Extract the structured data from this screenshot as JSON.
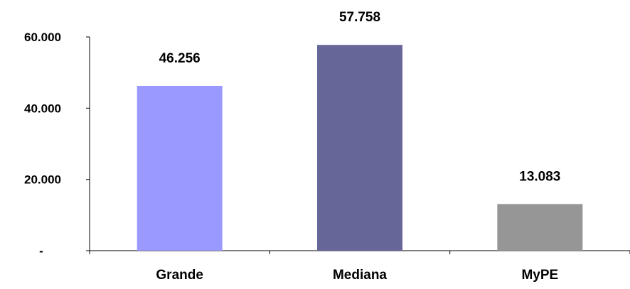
{
  "chart_data": {
    "type": "bar",
    "categories": [
      "Grande",
      "Mediana",
      "MyPE"
    ],
    "values": [
      46256,
      57758,
      13083
    ],
    "value_labels": [
      "46.256",
      "57.758",
      "13.083"
    ],
    "bar_colors": [
      "#9999FF",
      "#666699",
      "#969696"
    ],
    "ylim": [
      0,
      60000
    ],
    "y_ticks": [
      {
        "value": 0,
        "label": "-"
      },
      {
        "value": 20000,
        "label": "20.000"
      },
      {
        "value": 40000,
        "label": "40.000"
      },
      {
        "value": 60000,
        "label": "60.000"
      }
    ],
    "title": "",
    "xlabel": "",
    "ylabel": "",
    "grid": false,
    "legend": "none"
  }
}
